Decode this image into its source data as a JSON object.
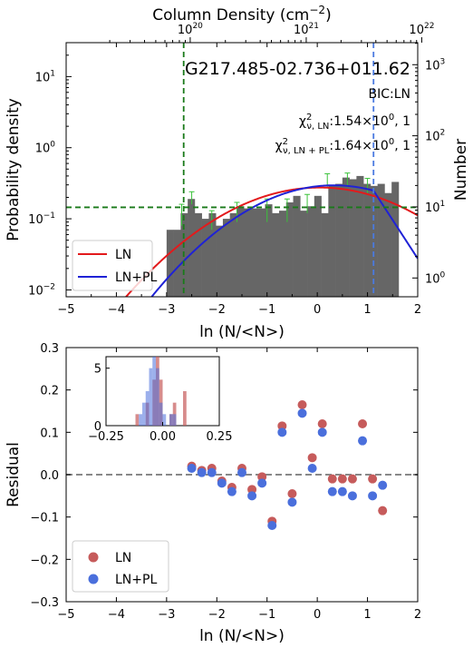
{
  "chart_data": [
    {
      "type": "histogram",
      "source_id": "G217.485-02.736+011.62",
      "bic_label": "BIC:LN",
      "chi_ln_value": ":1.54×10",
      "chi_ln_exp": "0",
      "chi_ln_tail": ", 1",
      "chi_lnpl_value": ":1.64×10",
      "chi_lnpl_exp": "0",
      "chi_lnpl_tail": ", 1",
      "xlabel": "ln (N/<N>)",
      "ylabel_left": "Probability density",
      "ylabel_right": "Number",
      "top_xlabel": "Column Density (cm",
      "top_xlabel_exp": "−2",
      "top_xlabel_close": ")",
      "xlim": [
        -5,
        2
      ],
      "ylim_log": [
        0.008,
        30
      ],
      "x_ticks": [
        -5,
        -4,
        -3,
        -2,
        -1,
        0,
        1,
        2
      ],
      "x_tick_labels": [
        "−5",
        "−4",
        "−3",
        "−2",
        "−1",
        "0",
        "1",
        "2"
      ],
      "y_ticks": [
        {
          "value": 10,
          "base": "10",
          "exp": "1"
        },
        {
          "value": 1,
          "base": "10",
          "exp": "0"
        },
        {
          "value": 0.1,
          "base": "10",
          "exp": "−1"
        },
        {
          "value": 0.01,
          "base": "10",
          "exp": "−2"
        }
      ],
      "right_ticks": [
        {
          "value": 1000,
          "base": "10",
          "exp": "3"
        },
        {
          "value": 100,
          "base": "10",
          "exp": "2"
        },
        {
          "value": 10,
          "base": "10",
          "exp": "1"
        },
        {
          "value": 1,
          "base": "10",
          "exp": "0"
        }
      ],
      "top_ticks": [
        {
          "x": -2.53,
          "base": "10",
          "exp": "20"
        },
        {
          "x": -0.22,
          "base": "10",
          "exp": "21"
        },
        {
          "x": 2.08,
          "base": "10",
          "exp": "22"
        }
      ],
      "bins": {
        "edges_start": -3.0,
        "width": 0.14,
        "values": [
          0.07,
          0.07,
          0.12,
          0.19,
          0.12,
          0.1,
          0.12,
          0.08,
          0.1,
          0.12,
          0.15,
          0.14,
          0.14,
          0.14,
          0.16,
          0.12,
          0.13,
          0.17,
          0.21,
          0.13,
          0.15,
          0.21,
          0.12,
          0.3,
          0.31,
          0.38,
          0.36,
          0.4,
          0.31,
          0.29,
          0.31,
          0.23,
          0.33
        ]
      },
      "error_bars": [
        {
          "x": -2.7,
          "y": 0.12,
          "err": 0.04
        },
        {
          "x": -2.5,
          "y": 0.2,
          "err": 0.04
        },
        {
          "x": -2.1,
          "y": 0.1,
          "err": 0.03
        },
        {
          "x": -1.6,
          "y": 0.13,
          "err": 0.04
        },
        {
          "x": -1.0,
          "y": 0.14,
          "err": 0.05
        },
        {
          "x": -0.6,
          "y": 0.14,
          "err": 0.05
        },
        {
          "x": -0.2,
          "y": 0.17,
          "err": 0.05
        },
        {
          "x": 0.2,
          "y": 0.35,
          "err": 0.08
        },
        {
          "x": 0.6,
          "y": 0.36,
          "err": 0.08
        },
        {
          "x": 1.0,
          "y": 0.3,
          "err": 0.07
        }
      ],
      "series": [
        {
          "name": "LN",
          "color": "#e31a1c",
          "mu": 0.05,
          "sigma": 1.45
        },
        {
          "name": "LN+PL",
          "color": "#1f22d6",
          "mu": 0.33,
          "sigma": 1.35,
          "pl_break": 1.12,
          "pl_slope": -2.5
        }
      ],
      "hline": 0.145,
      "vline_green": -2.66,
      "vline_blue": 1.12
    },
    {
      "type": "scatter",
      "xlabel": "ln (N/<N>)",
      "ylabel": "Residual",
      "xlim": [
        -5,
        2
      ],
      "ylim": [
        -0.3,
        0.3
      ],
      "x_ticks": [
        -5,
        -4,
        -3,
        -2,
        -1,
        0,
        1,
        2
      ],
      "x_tick_labels": [
        "−5",
        "−4",
        "−3",
        "−2",
        "−1",
        "0",
        "1",
        "2"
      ],
      "y_ticks": [
        -0.3,
        -0.2,
        -0.1,
        0.0,
        0.1,
        0.2,
        0.3
      ],
      "y_tick_labels": [
        "−0.3",
        "−0.2",
        "−0.1",
        "0.0",
        "0.1",
        "0.2",
        "0.3"
      ],
      "series": [
        {
          "name": "LN",
          "color": "#c65b5b",
          "x": [
            -2.5,
            -2.3,
            -2.1,
            -1.9,
            -1.7,
            -1.5,
            -1.3,
            -1.1,
            -0.9,
            -0.7,
            -0.5,
            -0.3,
            -0.1,
            0.1,
            0.3,
            0.5,
            0.7,
            0.9,
            1.1,
            1.3
          ],
          "y": [
            0.02,
            0.01,
            0.015,
            -0.015,
            -0.03,
            0.015,
            -0.035,
            -0.005,
            -0.11,
            0.115,
            -0.045,
            0.165,
            0.04,
            0.12,
            -0.01,
            -0.01,
            -0.01,
            0.12,
            -0.01,
            -0.085
          ]
        },
        {
          "name": "LN+PL",
          "color": "#4a6fdc",
          "x": [
            -2.5,
            -2.3,
            -2.1,
            -1.9,
            -1.7,
            -1.5,
            -1.3,
            -1.1,
            -0.9,
            -0.7,
            -0.5,
            -0.3,
            -0.1,
            0.1,
            0.3,
            0.5,
            0.7,
            0.9,
            1.1,
            1.3
          ],
          "y": [
            0.015,
            0.005,
            0.005,
            -0.02,
            -0.04,
            0.005,
            -0.05,
            -0.02,
            -0.12,
            0.1,
            -0.065,
            0.145,
            0.015,
            0.1,
            -0.04,
            -0.04,
            -0.05,
            0.08,
            -0.05,
            -0.025
          ]
        }
      ],
      "hline": 0.0,
      "inset": {
        "xlim": [
          -0.25,
          0.25
        ],
        "ylim": [
          0,
          6
        ],
        "x_ticks": [
          -0.25,
          0.0,
          0.25
        ],
        "x_tick_labels": [
          "−0.25",
          "0.00",
          "0.25"
        ],
        "y_ticks": [
          0,
          5
        ],
        "y_tick_labels": [
          "0",
          "5"
        ],
        "bins_start": -0.12,
        "bin_width": 0.015,
        "ln_counts": [
          1,
          0,
          0,
          2,
          0,
          4,
          6,
          4,
          0,
          0,
          1,
          2,
          0,
          0,
          3,
          0
        ],
        "lnpl_counts": [
          0,
          1,
          2,
          3,
          5,
          6,
          5,
          2,
          1,
          0,
          1,
          1,
          0,
          0,
          0,
          0
        ]
      }
    }
  ]
}
